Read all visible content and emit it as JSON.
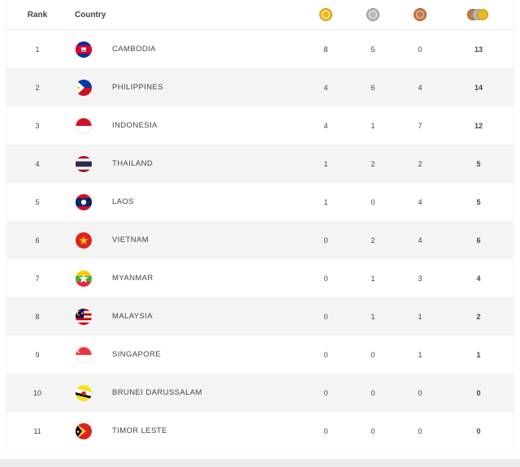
{
  "header": {
    "rank": "Rank",
    "country": "Country",
    "gold_icon": "gold-medal-icon",
    "silver_icon": "silver-medal-icon",
    "bronze_icon": "bronze-medal-icon",
    "total_icon": "total-medals-icon"
  },
  "colors": {
    "gold": "#e8b92a",
    "silver": "#b8b8b8",
    "bronze": "#c97a4c",
    "alt_row": "#f4f4f4"
  },
  "rows": [
    {
      "rank": "1",
      "country": "CAMBODIA",
      "flag": "cambodia-flag-icon",
      "gold": "8",
      "silver": "5",
      "bronze": "0",
      "total": "13"
    },
    {
      "rank": "2",
      "country": "PHILIPPINES",
      "flag": "philippines-flag-icon",
      "gold": "4",
      "silver": "6",
      "bronze": "4",
      "total": "14"
    },
    {
      "rank": "3",
      "country": "INDONESIA",
      "flag": "indonesia-flag-icon",
      "gold": "4",
      "silver": "1",
      "bronze": "7",
      "total": "12"
    },
    {
      "rank": "4",
      "country": "THAILAND",
      "flag": "thailand-flag-icon",
      "gold": "1",
      "silver": "2",
      "bronze": "2",
      "total": "5"
    },
    {
      "rank": "5",
      "country": "LAOS",
      "flag": "laos-flag-icon",
      "gold": "1",
      "silver": "0",
      "bronze": "4",
      "total": "5"
    },
    {
      "rank": "6",
      "country": "VIETNAM",
      "flag": "vietnam-flag-icon",
      "gold": "0",
      "silver": "2",
      "bronze": "4",
      "total": "6"
    },
    {
      "rank": "7",
      "country": "MYANMAR",
      "flag": "myanmar-flag-icon",
      "gold": "0",
      "silver": "1",
      "bronze": "3",
      "total": "4"
    },
    {
      "rank": "8",
      "country": "MALAYSIA",
      "flag": "malaysia-flag-icon",
      "gold": "0",
      "silver": "1",
      "bronze": "1",
      "total": "2"
    },
    {
      "rank": "9",
      "country": "SINGAPORE",
      "flag": "singapore-flag-icon",
      "gold": "0",
      "silver": "0",
      "bronze": "1",
      "total": "1"
    },
    {
      "rank": "10",
      "country": "BRUNEI DARUSSALAM",
      "flag": "brunei-flag-icon",
      "gold": "0",
      "silver": "0",
      "bronze": "0",
      "total": "0"
    },
    {
      "rank": "11",
      "country": "TIMOR LESTE",
      "flag": "timor-leste-flag-icon",
      "gold": "0",
      "silver": "0",
      "bronze": "0",
      "total": "0"
    }
  ]
}
